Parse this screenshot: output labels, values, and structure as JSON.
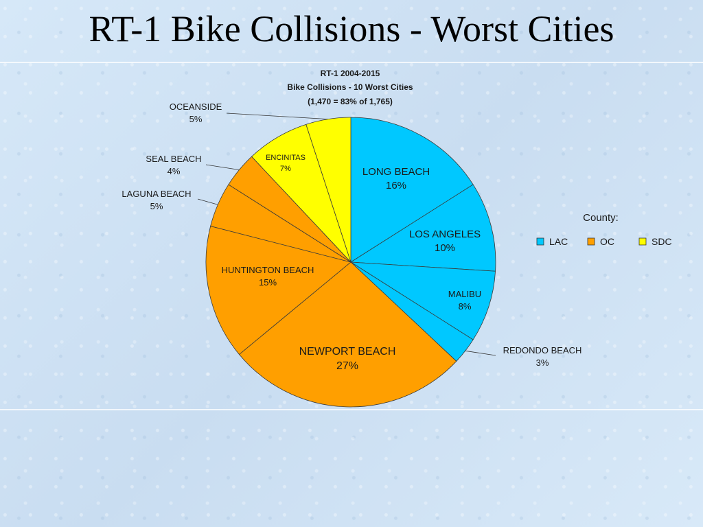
{
  "slide": {
    "title": "RT-1 Bike Collisions - Worst Cities"
  },
  "chart_data": {
    "type": "pie",
    "title_lines": [
      "RT-1 2004-2015",
      "Bike Collisions - 10 Worst Cities",
      "(1,470 = 83% of 1,765)"
    ],
    "slices": [
      {
        "name": "LONG BEACH",
        "label": "16%",
        "value": 16,
        "county": "LAC"
      },
      {
        "name": "LOS ANGELES",
        "label": "10%",
        "value": 10,
        "county": "LAC"
      },
      {
        "name": "MALIBU",
        "label": "8%",
        "value": 8,
        "county": "LAC"
      },
      {
        "name": "REDONDO BEACH",
        "label": "3%",
        "value": 3,
        "county": "LAC"
      },
      {
        "name": "NEWPORT BEACH",
        "label": "27%",
        "value": 27,
        "county": "OC"
      },
      {
        "name": "HUNTINGTON BEACH",
        "label": "15%",
        "value": 15,
        "county": "OC"
      },
      {
        "name": "LAGUNA BEACH",
        "label": "5%",
        "value": 5,
        "county": "OC"
      },
      {
        "name": "SEAL BEACH",
        "label": "4%",
        "value": 4,
        "county": "OC"
      },
      {
        "name": "ENCINITAS",
        "label": "7%",
        "value": 7,
        "county": "SDC"
      },
      {
        "name": "OCEANSIDE",
        "label": "5%",
        "value": 5,
        "county": "SDC"
      }
    ],
    "legend": {
      "title": "County:",
      "position": "right",
      "items": [
        {
          "key": "LAC",
          "label": "LAC",
          "color": "#00c8ff"
        },
        {
          "key": "OC",
          "label": "OC",
          "color": "#ff9f00"
        },
        {
          "key": "SDC",
          "label": "SDC",
          "color": "#ffff00"
        }
      ]
    }
  }
}
